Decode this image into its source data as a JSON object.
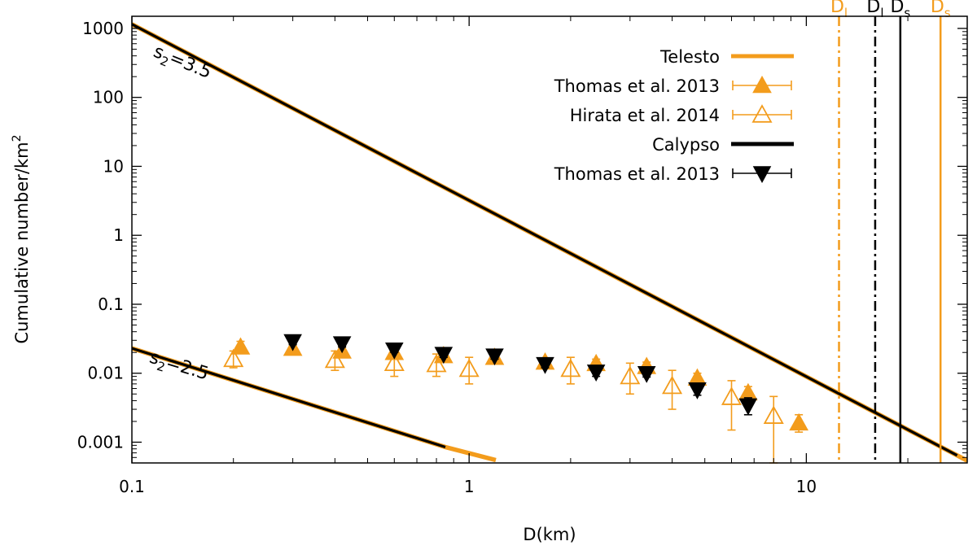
{
  "chart_data": {
    "type": "scatter",
    "title": "",
    "xlabel": "D(km)",
    "ylabel_base": "Cumulative number/km",
    "ylabel_sup": "2",
    "xscale": "log",
    "yscale": "log",
    "xlim": [
      0.1,
      30
    ],
    "ylim": [
      0.0005,
      1500
    ],
    "x_ticks": [
      {
        "value": 0.1,
        "label": "0.1"
      },
      {
        "value": 1,
        "label": "1"
      },
      {
        "value": 10,
        "label": "10"
      }
    ],
    "y_ticks": [
      {
        "value": 0.001,
        "label": "0.001"
      },
      {
        "value": 0.01,
        "label": "0.01"
      },
      {
        "value": 0.1,
        "label": "0.1"
      },
      {
        "value": 1,
        "label": "1"
      },
      {
        "value": 10,
        "label": "10"
      },
      {
        "value": 100,
        "label": "100"
      },
      {
        "value": 1000,
        "label": "1000"
      }
    ],
    "colors": {
      "orange": "#f39c1c",
      "black": "#000000"
    },
    "power_laws": [
      {
        "name": "s2=3.5",
        "x": [
          0.1,
          30
        ],
        "y": [
          1150,
          0.00054
        ]
      },
      {
        "name": "s2=2.5",
        "x": [
          0.1,
          0.85,
          1.2
        ],
        "y": [
          0.023,
          0.00085,
          0.00055
        ]
      }
    ],
    "annotations": [
      {
        "base": "s",
        "sub": "2",
        "rest": "=3.5",
        "x": 0.115,
        "y": 400,
        "angle": 22
      },
      {
        "base": "s",
        "sub": "2",
        "rest": "=2.5",
        "x": 0.112,
        "y": 0.0145,
        "angle": 17
      }
    ],
    "vlines": [
      {
        "label_base": "D",
        "label_sub": "l",
        "x": 12.5,
        "color": "orange",
        "style": "dashdot"
      },
      {
        "label_base": "D",
        "label_sub": "l",
        "x": 16,
        "color": "black",
        "style": "dashdot"
      },
      {
        "label_base": "D",
        "label_sub": "s",
        "x": 19,
        "color": "black",
        "style": "solid"
      },
      {
        "label_base": "D",
        "label_sub": "s",
        "x": 25,
        "color": "orange",
        "style": "solid"
      }
    ],
    "series": [
      {
        "name": "Telesto",
        "kind": "line",
        "color": "orange"
      },
      {
        "name": "Thomas et al. 2013",
        "kind": "filled-up",
        "color": "orange",
        "points": [
          {
            "x": 0.21,
            "y": 0.024,
            "lo": 0.02,
            "hi": 0.029
          },
          {
            "x": 0.3,
            "y": 0.023,
            "lo": 0.02,
            "hi": 0.027
          },
          {
            "x": 0.42,
            "y": 0.021,
            "lo": 0.018,
            "hi": 0.025
          },
          {
            "x": 0.6,
            "y": 0.02,
            "lo": 0.017,
            "hi": 0.024
          },
          {
            "x": 0.84,
            "y": 0.018,
            "lo": 0.016,
            "hi": 0.021
          },
          {
            "x": 1.19,
            "y": 0.017,
            "lo": 0.015,
            "hi": 0.019
          },
          {
            "x": 1.68,
            "y": 0.0145,
            "lo": 0.013,
            "hi": 0.0165
          },
          {
            "x": 2.38,
            "y": 0.0138,
            "lo": 0.012,
            "hi": 0.016
          },
          {
            "x": 3.36,
            "y": 0.0125,
            "lo": 0.011,
            "hi": 0.0145
          },
          {
            "x": 4.75,
            "y": 0.0085,
            "lo": 0.0072,
            "hi": 0.01
          },
          {
            "x": 6.72,
            "y": 0.0052,
            "lo": 0.0042,
            "hi": 0.0064
          },
          {
            "x": 9.5,
            "y": 0.0019,
            "lo": 0.0014,
            "hi": 0.0025
          }
        ]
      },
      {
        "name": "Hirata et al. 2014",
        "kind": "open-up",
        "color": "orange",
        "points": [
          {
            "x": 0.2,
            "y": 0.016,
            "lo": 0.012,
            "hi": 0.021
          },
          {
            "x": 0.4,
            "y": 0.0155,
            "lo": 0.011,
            "hi": 0.021
          },
          {
            "x": 0.6,
            "y": 0.014,
            "lo": 0.009,
            "hi": 0.02
          },
          {
            "x": 0.8,
            "y": 0.0135,
            "lo": 0.009,
            "hi": 0.019
          },
          {
            "x": 1.0,
            "y": 0.0115,
            "lo": 0.007,
            "hi": 0.017
          },
          {
            "x": 2.0,
            "y": 0.0115,
            "lo": 0.007,
            "hi": 0.017
          },
          {
            "x": 3.0,
            "y": 0.009,
            "lo": 0.005,
            "hi": 0.014
          },
          {
            "x": 4.0,
            "y": 0.0065,
            "lo": 0.003,
            "hi": 0.011
          },
          {
            "x": 6.0,
            "y": 0.0045,
            "lo": 0.0015,
            "hi": 0.0078
          },
          {
            "x": 8.0,
            "y": 0.0024,
            "lo": 0.0005,
            "hi": 0.0046
          }
        ]
      },
      {
        "name": "Calypso",
        "kind": "line",
        "color": "black"
      },
      {
        "name": "Thomas et al. 2013",
        "kind": "filled-down",
        "color": "black",
        "points": [
          {
            "x": 0.3,
            "y": 0.029,
            "lo": 0.026,
            "hi": 0.032
          },
          {
            "x": 0.42,
            "y": 0.027,
            "lo": 0.024,
            "hi": 0.03
          },
          {
            "x": 0.6,
            "y": 0.022,
            "lo": 0.02,
            "hi": 0.025
          },
          {
            "x": 0.84,
            "y": 0.019,
            "lo": 0.017,
            "hi": 0.021
          },
          {
            "x": 1.19,
            "y": 0.018,
            "lo": 0.016,
            "hi": 0.02
          },
          {
            "x": 1.68,
            "y": 0.0135,
            "lo": 0.012,
            "hi": 0.015
          },
          {
            "x": 2.38,
            "y": 0.0105,
            "lo": 0.009,
            "hi": 0.0125
          },
          {
            "x": 3.36,
            "y": 0.01,
            "lo": 0.0088,
            "hi": 0.0115
          },
          {
            "x": 4.75,
            "y": 0.0058,
            "lo": 0.0048,
            "hi": 0.0068
          },
          {
            "x": 6.72,
            "y": 0.0034,
            "lo": 0.0025,
            "hi": 0.0044
          }
        ]
      }
    ],
    "legend": {
      "placement": "top-right",
      "entries": [
        {
          "label": "Telesto",
          "kind": "line",
          "color": "orange"
        },
        {
          "label": "Thomas et al. 2013",
          "kind": "filled-up",
          "color": "orange"
        },
        {
          "label": "Hirata et al. 2014",
          "kind": "open-up",
          "color": "orange"
        },
        {
          "label": "Calypso",
          "kind": "line",
          "color": "black"
        },
        {
          "label": "Thomas et al. 2013",
          "kind": "filled-down",
          "color": "black"
        }
      ]
    }
  }
}
